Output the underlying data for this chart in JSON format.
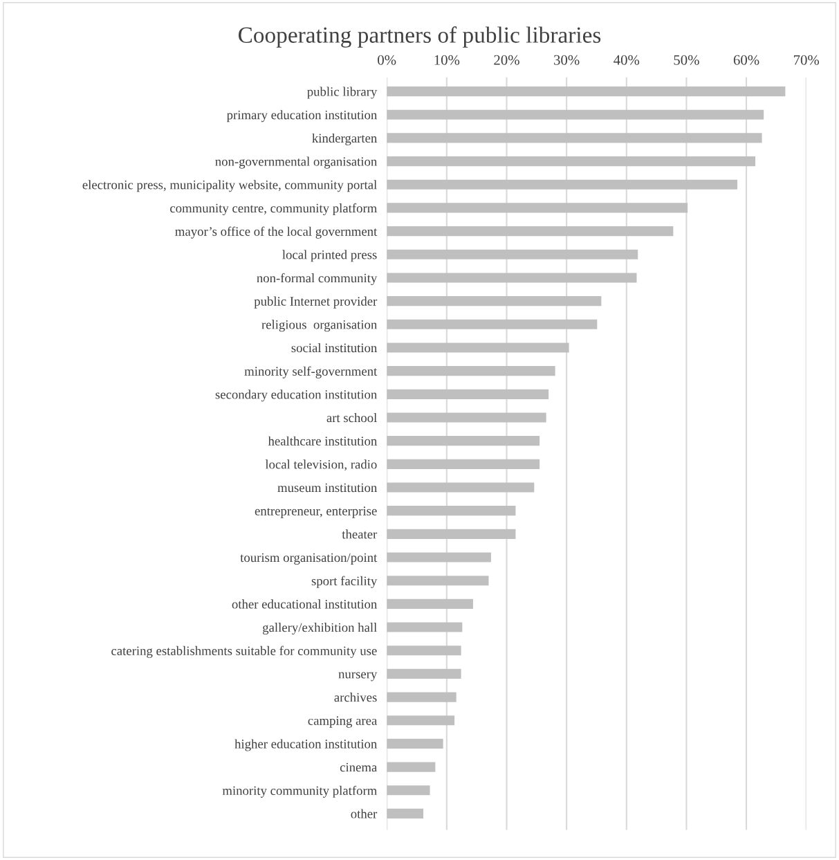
{
  "chart_data": {
    "type": "bar",
    "orientation": "horizontal",
    "title": "Cooperating partners of public libraries",
    "categories": [
      "public library",
      "primary education institution",
      "kindergarten",
      "non-governmental organisation",
      "electronic press, municipality website, community portal",
      "community centre, community platform",
      "mayor’s office of the local government",
      "local printed press",
      "non-formal community",
      "public Internet provider",
      "religious  organisation",
      "social institution",
      "minority self-government",
      "secondary education institution",
      "art school",
      "healthcare institution",
      "local television, radio",
      "museum institution",
      "entrepreneur, enterprise",
      "theater",
      "tourism organisation/point",
      "sport facility",
      "other educational institution",
      "gallery/exhibition hall",
      "catering establishments suitable for community use",
      "nursery",
      "archives",
      "camping area",
      "higher education institution",
      "cinema",
      "minority community platform",
      "other"
    ],
    "values": [
      66.5,
      62.9,
      62.6,
      61.5,
      58.5,
      50.2,
      47.8,
      41.9,
      41.7,
      35.8,
      35.1,
      30.4,
      28.1,
      27.0,
      26.6,
      25.5,
      25.5,
      24.6,
      21.5,
      21.5,
      17.4,
      17.0,
      14.4,
      12.6,
      12.4,
      12.4,
      11.6,
      11.3,
      9.4,
      8.1,
      7.2,
      6.1
    ],
    "color": "#bfbfbf",
    "xlim": [
      0,
      70
    ],
    "xticks": [
      {
        "value": 0,
        "label": "0%"
      },
      {
        "value": 10,
        "label": "10%"
      },
      {
        "value": 20,
        "label": "20%"
      },
      {
        "value": 30,
        "label": "30%"
      },
      {
        "value": 40,
        "label": "40%"
      },
      {
        "value": 50,
        "label": "50%"
      },
      {
        "value": 60,
        "label": "60%"
      },
      {
        "value": 70,
        "label": "70%"
      }
    ],
    "grid": "x",
    "legend": false
  }
}
